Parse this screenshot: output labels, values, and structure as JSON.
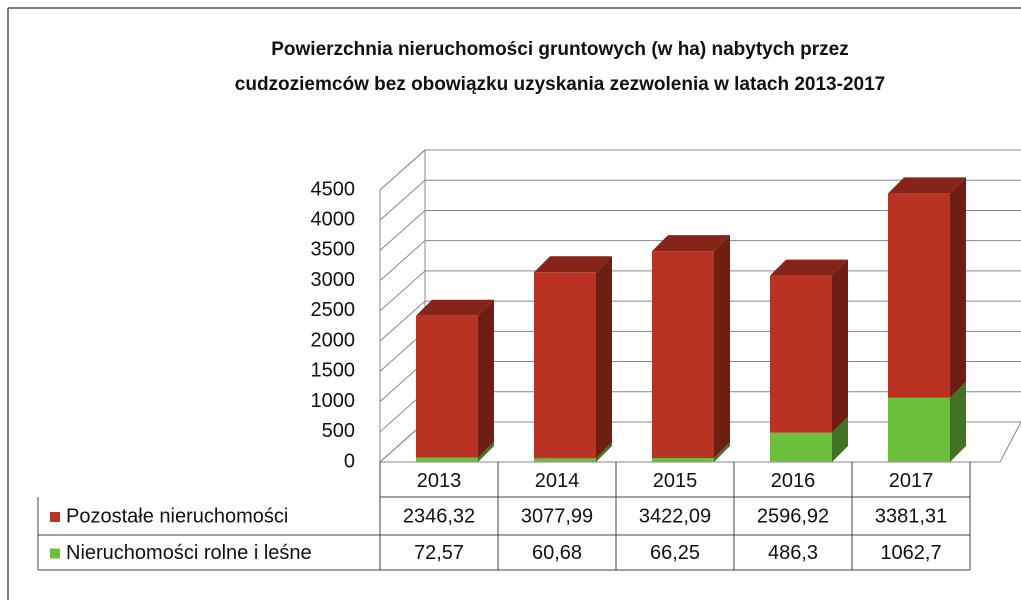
{
  "chart_data": {
    "type": "bar3d_stacked",
    "title": [
      "Powierzchnia nieruchomości gruntowych (w ha) nabytych przez",
      "cudzoziemców bez obowiązku uzyskania zezwolenia w latach 2013-2017"
    ],
    "categories": [
      "2013",
      "2014",
      "2015",
      "2016",
      "2017"
    ],
    "series": [
      {
        "name": "Pozostałe nieruchomości",
        "color": "#b93222",
        "values": [
          2346.32,
          3077.99,
          3422.09,
          2596.92,
          3381.31
        ],
        "value_labels": [
          "2346,32",
          "3077,99",
          "3422,09",
          "2596,92",
          "3381,31"
        ]
      },
      {
        "name": "Nieruchomości rolne i leśne",
        "color": "#6cbf3a",
        "values": [
          72.57,
          60.68,
          66.25,
          486.3,
          1062.7
        ],
        "value_labels": [
          "72,57",
          "60,68",
          "66,25",
          "486,3",
          "1062,7"
        ]
      }
    ],
    "stack_order": [
      1,
      0
    ],
    "ylim": [
      0,
      4500
    ],
    "yticks": [
      0,
      500,
      1000,
      1500,
      2000,
      2500,
      3000,
      3500,
      4000,
      4500
    ],
    "grid": true
  }
}
